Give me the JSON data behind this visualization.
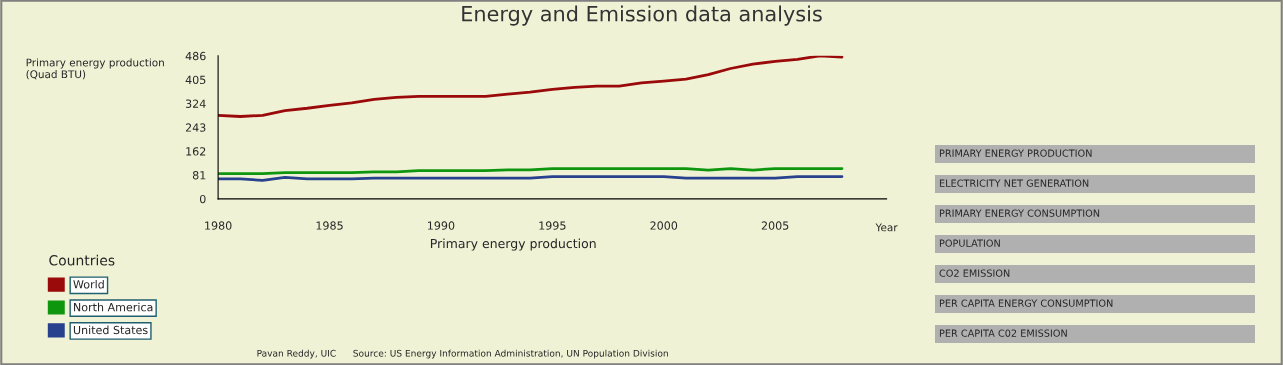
{
  "chart_data": {
    "type": "line",
    "title": "Energy and Emission data analysis",
    "xlabel": "Year",
    "ylabel": "Primary energy production\n(Quad BTU)",
    "legend_title": "Countries",
    "x": [
      1980,
      1981,
      1982,
      1983,
      1984,
      1985,
      1986,
      1987,
      1988,
      1989,
      1990,
      1991,
      1992,
      1993,
      1994,
      1995,
      1996,
      1997,
      1998,
      1999,
      2000,
      2001,
      2002,
      2003,
      2004,
      2005,
      2006,
      2007,
      2008
    ],
    "series": [
      {
        "name": "World",
        "color": "#9b0a0a",
        "values": [
          284,
          280,
          284,
          300,
          308,
          318,
          326,
          338,
          345,
          348,
          348,
          348,
          348,
          356,
          363,
          372,
          379,
          383,
          383,
          394,
          400,
          407,
          422,
          443,
          458,
          467,
          474,
          486,
          482
        ]
      },
      {
        "name": "North America",
        "color": "#0f960f",
        "values": [
          86,
          86,
          86,
          89,
          89,
          89,
          89,
          92,
          92,
          96,
          96,
          96,
          96,
          99,
          99,
          103,
          103,
          103,
          103,
          103,
          103,
          103,
          98,
          103,
          98,
          103,
          103,
          103,
          103
        ]
      },
      {
        "name": "United States",
        "color": "#28418f",
        "values": [
          68,
          68,
          63,
          73,
          68,
          68,
          68,
          71,
          71,
          71,
          71,
          71,
          71,
          71,
          71,
          76,
          76,
          76,
          76,
          76,
          76,
          71,
          71,
          71,
          71,
          71,
          76,
          76,
          76
        ]
      }
    ],
    "xlim": [
      1980,
      2010
    ],
    "xticks": [
      1980,
      1985,
      1990,
      1995,
      2000,
      2005
    ],
    "ylim": [
      0,
      486
    ],
    "yticks": [
      0,
      81,
      162,
      243,
      324,
      405,
      486
    ],
    "grid": false,
    "legend": "bottom left",
    "marker": "none",
    "line_style": "solid",
    "annotations": [
      "Primary energy production",
      "PRIMARY ENERGY PRODUCTION",
      "ELECTRICITY NET GENERATION",
      "PRIMARY ENERGY CONSUMPTION",
      "POPULATION",
      "CO2 EMISSION",
      "PER CAPITA ENERGY CONSUMPTION",
      "PER CAPITA C02 EMISSION",
      "Pavan Reddy, UIC",
      "Source: US Energy Information Administration, UN Population Division"
    ]
  }
}
